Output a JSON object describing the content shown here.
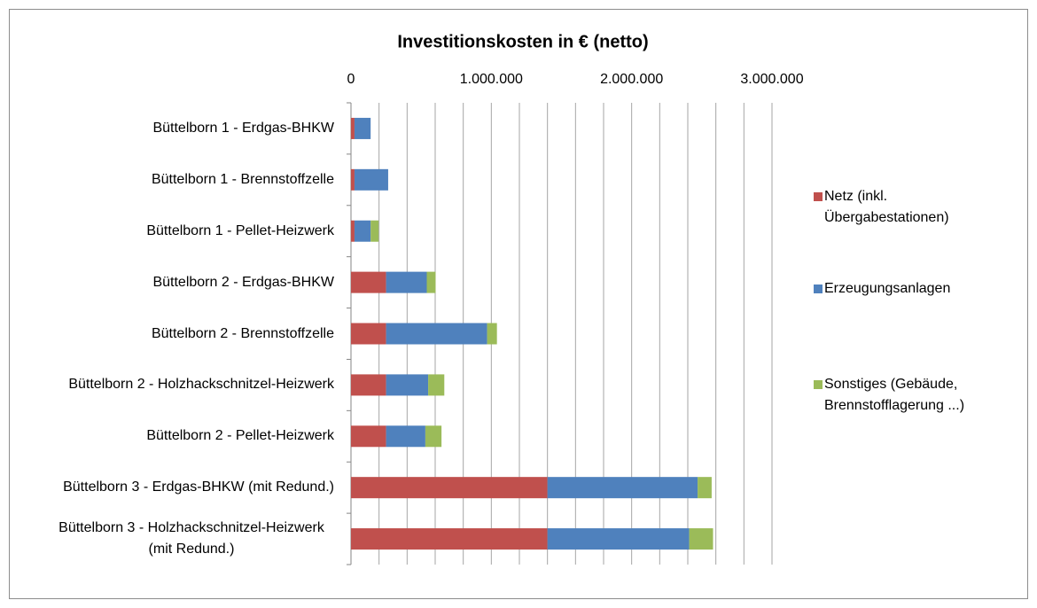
{
  "chart_data": {
    "type": "bar",
    "orientation": "horizontal",
    "stacked": true,
    "title": "Investitionskosten in € (netto)",
    "categories": [
      "Büttelborn 1 - Erdgas-BHKW",
      "Büttelborn 1 - Brennstoffzelle",
      "Büttelborn 1 -  Pellet-Heizwerk",
      "Büttelborn 2 - Erdgas-BHKW",
      "Büttelborn 2 - Brennstoffzelle",
      "Büttelborn 2 - Holzhackschnitzel-Heizwerk",
      "Büttelborn 2 - Pellet-Heizwerk",
      "Büttelborn 3 - Erdgas-BHKW (mit Redund.)",
      "Büttelborn 3 - Holzhackschnitzel-Heizwerk (mit Redund.)"
    ],
    "series": [
      {
        "name": "Netz (inkl. Übergabestationen)",
        "color": "#c0504d",
        "values": [
          25000,
          25000,
          25000,
          250000,
          250000,
          250000,
          250000,
          1400000,
          1400000
        ]
      },
      {
        "name": "Erzeugungsanlagen",
        "color": "#4f81bd",
        "values": [
          115000,
          240000,
          115000,
          290000,
          720000,
          300000,
          280000,
          1070000,
          1010000
        ]
      },
      {
        "name": "Sonstiges (Gebäude, Brennstofflagerung ...)",
        "color": "#9bbb59",
        "values": [
          0,
          0,
          57000,
          63000,
          70000,
          115000,
          115000,
          100000,
          170000
        ]
      }
    ],
    "xlim": [
      0,
      3000000
    ],
    "xticks": [
      0,
      {
        "value": 1000000,
        "label": "1.000.000"
      },
      {
        "value": 2000000,
        "label": "2.000.000"
      },
      {
        "value": 3000000,
        "label": "3.000.000"
      }
    ],
    "xminor": [
      200000,
      400000,
      600000,
      800000,
      1200000,
      1400000,
      1600000,
      1800000,
      2200000,
      2400000,
      2600000,
      2800000
    ],
    "grid": true,
    "legend": "right"
  }
}
